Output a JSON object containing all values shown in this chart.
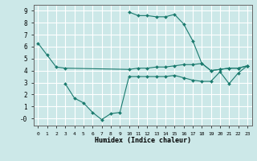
{
  "title": "",
  "xlabel": "Humidex (Indice chaleur)",
  "background_color": "#cce8e8",
  "grid_color": "#ffffff",
  "line_color": "#1a7a6e",
  "xlim": [
    -0.5,
    23.5
  ],
  "ylim": [
    -0.6,
    9.5
  ],
  "xticks": [
    0,
    1,
    2,
    3,
    4,
    5,
    6,
    7,
    8,
    9,
    10,
    11,
    12,
    13,
    14,
    15,
    16,
    17,
    18,
    19,
    20,
    21,
    22,
    23
  ],
  "ytick_labels": [
    "-0",
    "1",
    "2",
    "3",
    "4",
    "5",
    "6",
    "7",
    "8",
    "9"
  ],
  "line1_x": [
    0,
    1,
    2,
    3,
    10,
    11,
    12,
    13,
    14,
    15,
    16,
    17,
    18,
    19,
    20,
    21,
    22,
    23
  ],
  "line1_y": [
    6.3,
    5.3,
    4.3,
    4.2,
    4.1,
    4.2,
    4.2,
    4.3,
    4.3,
    4.4,
    4.5,
    4.5,
    4.6,
    4.0,
    4.1,
    4.2,
    4.2,
    4.4
  ],
  "line2_x": [
    3,
    4,
    5,
    6,
    7,
    8,
    9,
    10,
    11,
    12,
    13,
    14,
    15,
    16,
    17,
    18,
    19,
    20,
    21,
    22,
    23
  ],
  "line2_y": [
    2.9,
    1.7,
    1.3,
    0.5,
    -0.1,
    0.4,
    0.5,
    3.5,
    3.5,
    3.5,
    3.5,
    3.5,
    3.6,
    3.4,
    3.2,
    3.1,
    3.1,
    3.9,
    2.9,
    3.8,
    4.4
  ],
  "line3_x": [
    10,
    11,
    12,
    13,
    14,
    15,
    16,
    17,
    18,
    19,
    20,
    21,
    22,
    23
  ],
  "line3_y": [
    8.9,
    8.6,
    8.6,
    8.5,
    8.5,
    8.7,
    7.9,
    6.5,
    4.6,
    4.0,
    4.1,
    4.2,
    4.2,
    4.4
  ]
}
